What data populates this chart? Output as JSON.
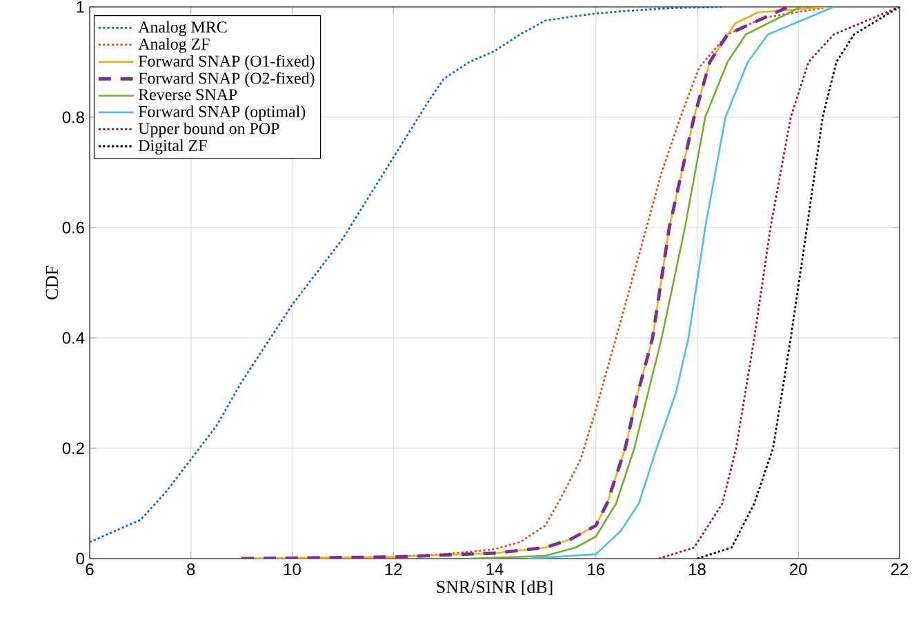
{
  "chart_data": {
    "type": "line",
    "xlabel": "SNR/SINR [dB]",
    "ylabel": "CDF",
    "xlim": [
      6,
      22
    ],
    "ylim": [
      0,
      1
    ],
    "xticks": [
      6,
      8,
      10,
      12,
      14,
      16,
      18,
      20,
      22
    ],
    "yticks": [
      0,
      0.2,
      0.4,
      0.6,
      0.8,
      1
    ],
    "grid": true,
    "legend": "top left",
    "series": [
      {
        "name": "Analog MRC",
        "color": "#0072bd",
        "line_style": "dotted",
        "x": [
          6,
          6.5,
          7,
          7.5,
          8,
          8.5,
          9,
          9.5,
          10,
          10.5,
          11,
          12.7,
          13,
          13.5,
          14,
          14.5,
          15,
          15.5,
          16,
          16.5,
          17,
          17.5,
          18,
          18.5
        ],
        "values": [
          0.03,
          0.05,
          0.07,
          0.12,
          0.18,
          0.24,
          0.32,
          0.39,
          0.46,
          0.52,
          0.58,
          0.83,
          0.87,
          0.9,
          0.92,
          0.95,
          0.975,
          0.982,
          0.988,
          0.992,
          0.995,
          0.998,
          0.999,
          1
        ]
      },
      {
        "name": "Analog ZF",
        "color": "#d95319",
        "line_style": "dotted",
        "x": [
          9,
          12,
          13,
          14,
          14.5,
          15,
          15.31,
          15.7,
          16,
          16.49,
          17,
          17.3,
          17.67,
          18.04,
          18.6,
          19.3,
          20.6
        ],
        "values": [
          0,
          0.003,
          0.008,
          0.017,
          0.03,
          0.06,
          0.11,
          0.18,
          0.27,
          0.43,
          0.6,
          0.7,
          0.8,
          0.89,
          0.95,
          0.98,
          1
        ]
      },
      {
        "name": "Forward SNAP (O1-fixed)",
        "color": "#edb120",
        "line_style": "solid",
        "x": [
          9,
          12,
          14,
          15,
          15.5,
          16,
          16.22,
          16.58,
          16.8,
          17.12,
          17.45,
          17.94,
          18.25,
          18.75,
          19.2,
          20.6
        ],
        "values": [
          0,
          0.003,
          0.01,
          0.02,
          0.035,
          0.06,
          0.1,
          0.2,
          0.29,
          0.4,
          0.6,
          0.8,
          0.9,
          0.97,
          0.99,
          1
        ]
      },
      {
        "name": "Forward SNAP (O2-fixed)",
        "color": "#7e2f8e",
        "line_style": "dashed",
        "x": [
          9,
          12,
          14,
          15,
          15.5,
          16,
          16.22,
          16.58,
          16.8,
          17.12,
          17.45,
          17.94,
          18.25,
          18.6,
          19.8
        ],
        "values": [
          0,
          0.003,
          0.01,
          0.02,
          0.035,
          0.06,
          0.1,
          0.2,
          0.29,
          0.4,
          0.6,
          0.8,
          0.9,
          0.95,
          1
        ]
      },
      {
        "name": "Reverse SNAP",
        "color": "#77ac30",
        "line_style": "solid",
        "x": [
          13.5,
          15,
          15.6,
          16,
          16.4,
          16.76,
          17.3,
          17.76,
          18.16,
          18.6,
          18.96,
          20.05
        ],
        "values": [
          0,
          0.005,
          0.02,
          0.04,
          0.1,
          0.2,
          0.4,
          0.6,
          0.8,
          0.9,
          0.95,
          1
        ]
      },
      {
        "name": "Forward SNAP (optimal)",
        "color": "#4dbeee",
        "line_style": "solid",
        "x": [
          14.67,
          16,
          16.49,
          16.85,
          17.2,
          17.58,
          17.83,
          18.16,
          18.56,
          19.0,
          19.4,
          20.7
        ],
        "values": [
          0,
          0.008,
          0.05,
          0.1,
          0.2,
          0.3,
          0.4,
          0.6,
          0.8,
          0.9,
          0.95,
          1
        ]
      },
      {
        "name": "Upper bound on POP",
        "color": "#a2142f",
        "line_style": "dotted",
        "x": [
          17.24,
          17.94,
          18.5,
          18.77,
          19.13,
          19.45,
          19.85,
          20.2,
          20.7,
          22
        ],
        "values": [
          0,
          0.02,
          0.1,
          0.2,
          0.4,
          0.6,
          0.8,
          0.9,
          0.95,
          1
        ]
      },
      {
        "name": "Digital ZF",
        "color": "#000000",
        "line_style": "dotted",
        "x": [
          18.0,
          18.68,
          19.13,
          19.5,
          19.85,
          20.17,
          20.48,
          20.75,
          21.1,
          22
        ],
        "values": [
          0,
          0.02,
          0.1,
          0.2,
          0.4,
          0.6,
          0.8,
          0.9,
          0.95,
          1
        ]
      }
    ]
  }
}
